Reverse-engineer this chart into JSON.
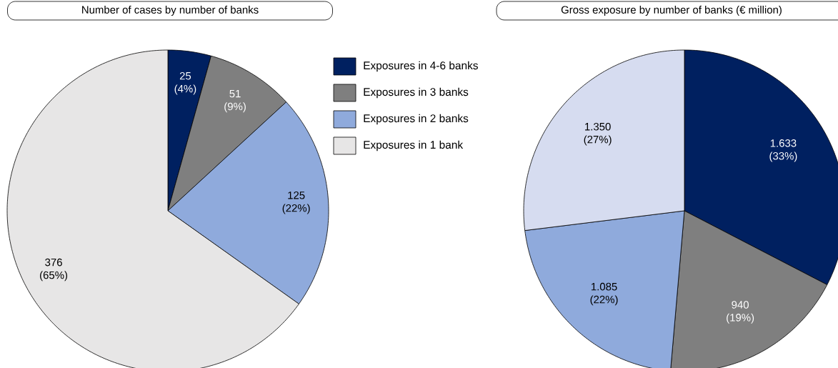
{
  "chart_data": [
    {
      "type": "pie",
      "title": "Number of cases by number of banks",
      "categories": [
        "Exposures in 4-6 banks",
        "Exposures in 3 banks",
        "Exposures in 2 banks",
        "Exposures in 1 bank"
      ],
      "values": [
        25,
        51,
        125,
        376
      ],
      "colors": [
        "#002060",
        "#7f7f7f",
        "#8faadc",
        "#e7e6e6"
      ],
      "value_labels": [
        "25 (4%)",
        "51 (9%)",
        "125 (22%)",
        "376 (65%)"
      ],
      "legend": "right"
    },
    {
      "type": "pie",
      "title": "Gross exposure by number of banks (€ million)",
      "categories": [
        null,
        null,
        null,
        null
      ],
      "values": [
        1633,
        940,
        1085,
        1350
      ],
      "colors": [
        "#002060",
        "#7f7f7f",
        "#8faadc",
        "#d6dcf0"
      ],
      "value_labels": [
        "1.633 (33%)",
        "940 (19%)",
        "1.085 (22%)",
        "1.350 (27%)"
      ]
    }
  ]
}
